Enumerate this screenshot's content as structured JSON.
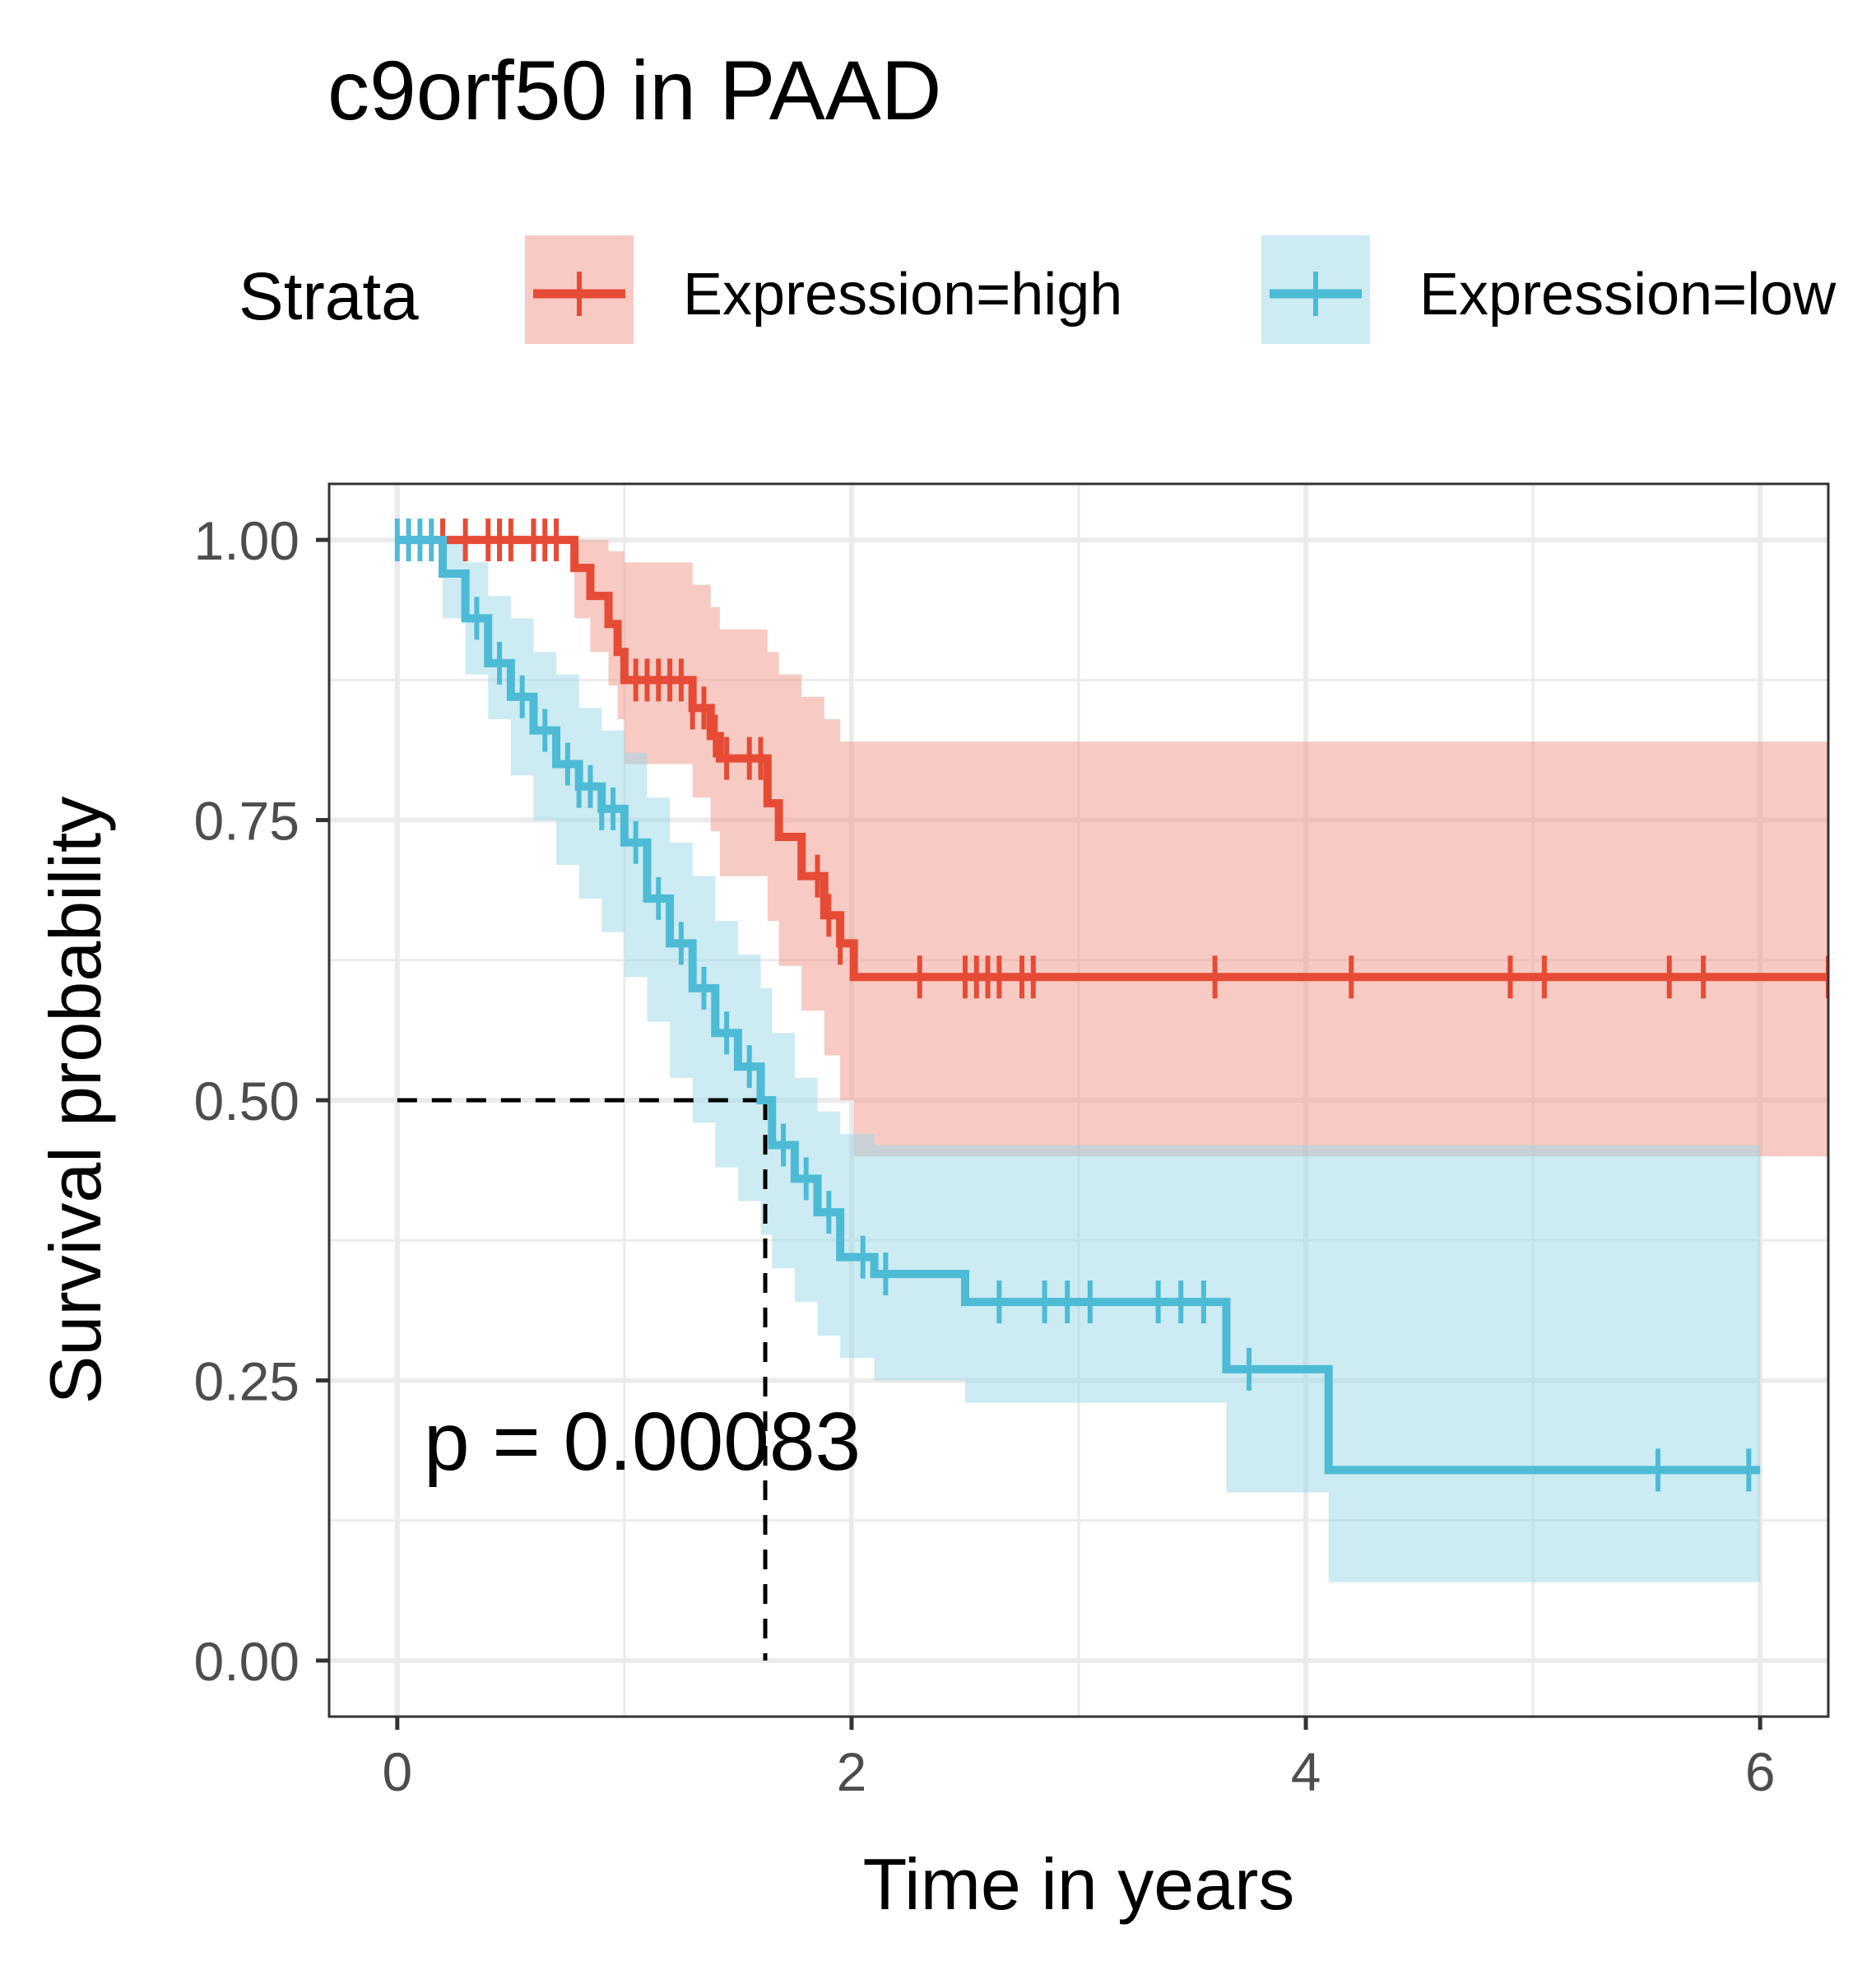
{
  "chart_data": {
    "type": "line",
    "title": "c9orf50 in PAAD",
    "xlabel": "Time in years",
    "ylabel": "Survival probability",
    "xlim": [
      -0.3,
      6.3
    ],
    "ylim": [
      -0.05,
      1.05
    ],
    "x_ticks": [
      0,
      2,
      4,
      6
    ],
    "x_tick_labels": [
      "0",
      "2",
      "4",
      "6"
    ],
    "y_ticks": [
      0,
      0.25,
      0.5,
      0.75,
      1.0
    ],
    "y_tick_labels": [
      "0.00",
      "0.25",
      "0.50",
      "0.75",
      "1.00"
    ],
    "grid": true,
    "legend_title": "Strata",
    "legend_position": "top",
    "pvalue_text": "p = 0.00083",
    "median_line": {
      "x": 1.62,
      "y": 0.5
    },
    "series": [
      {
        "name": "Expression=high",
        "color": "#e64b35",
        "band_color": "#f0958a",
        "step_x": [
          0,
          0.78,
          0.85,
          0.93,
          0.97,
          1.0,
          1.3,
          1.38,
          1.42,
          1.63,
          1.68,
          1.78,
          1.88,
          1.95,
          2.01,
          6.3
        ],
        "step_y": [
          1.0,
          0.975,
          0.95,
          0.925,
          0.9,
          0.875,
          0.85,
          0.825,
          0.805,
          0.765,
          0.735,
          0.7,
          0.665,
          0.64,
          0.61,
          0.61
        ],
        "ci_upper": [
          1.0,
          1.0,
          1.0,
          0.99,
          0.99,
          0.98,
          0.96,
          0.94,
          0.92,
          0.9,
          0.88,
          0.86,
          0.84,
          0.82,
          0.82,
          0.82
        ],
        "ci_lower": [
          1.0,
          0.93,
          0.9,
          0.87,
          0.84,
          0.8,
          0.77,
          0.74,
          0.7,
          0.66,
          0.62,
          0.58,
          0.54,
          0.5,
          0.45,
          0.45
        ],
        "censor_x": [
          0.2,
          0.3,
          0.4,
          0.45,
          0.5,
          0.6,
          0.65,
          0.7,
          1.05,
          1.1,
          1.15,
          1.2,
          1.25,
          1.3,
          1.35,
          1.4,
          1.45,
          1.55,
          1.6,
          1.85,
          1.9,
          1.95,
          2.3,
          2.5,
          2.55,
          2.6,
          2.65,
          2.75,
          2.8,
          3.6,
          4.2,
          4.9,
          5.05,
          5.6,
          5.75,
          6.3
        ]
      },
      {
        "name": "Expression=low",
        "color": "#4dbbd5",
        "band_color": "#9ad7e6",
        "step_x": [
          0,
          0.2,
          0.3,
          0.4,
          0.5,
          0.6,
          0.7,
          0.8,
          0.9,
          1.0,
          1.1,
          1.2,
          1.3,
          1.4,
          1.5,
          1.6,
          1.65,
          1.75,
          1.85,
          1.95,
          2.1,
          2.5,
          3.65,
          4.1,
          6.0
        ],
        "step_y": [
          1.0,
          0.97,
          0.93,
          0.89,
          0.86,
          0.83,
          0.8,
          0.78,
          0.76,
          0.73,
          0.68,
          0.64,
          0.6,
          0.56,
          0.53,
          0.5,
          0.46,
          0.43,
          0.4,
          0.36,
          0.345,
          0.32,
          0.26,
          0.17,
          0.17
        ],
        "ci_upper": [
          1.0,
          1.0,
          0.98,
          0.95,
          0.93,
          0.9,
          0.88,
          0.85,
          0.83,
          0.81,
          0.77,
          0.73,
          0.7,
          0.66,
          0.63,
          0.6,
          0.56,
          0.52,
          0.49,
          0.47,
          0.46,
          0.46,
          0.46,
          0.46,
          0.46
        ],
        "ci_lower": [
          1.0,
          0.93,
          0.88,
          0.84,
          0.79,
          0.75,
          0.71,
          0.68,
          0.65,
          0.61,
          0.57,
          0.52,
          0.48,
          0.44,
          0.41,
          0.38,
          0.35,
          0.32,
          0.29,
          0.27,
          0.25,
          0.23,
          0.15,
          0.07,
          0.07
        ],
        "censor_x": [
          0.0,
          0.05,
          0.1,
          0.15,
          0.35,
          0.45,
          0.55,
          0.65,
          0.75,
          0.8,
          0.85,
          0.9,
          0.95,
          1.05,
          1.15,
          1.25,
          1.35,
          1.45,
          1.55,
          1.7,
          1.8,
          1.9,
          2.05,
          2.15,
          2.65,
          2.85,
          2.95,
          3.05,
          3.35,
          3.45,
          3.55,
          3.75,
          5.55,
          5.95
        ]
      }
    ]
  }
}
